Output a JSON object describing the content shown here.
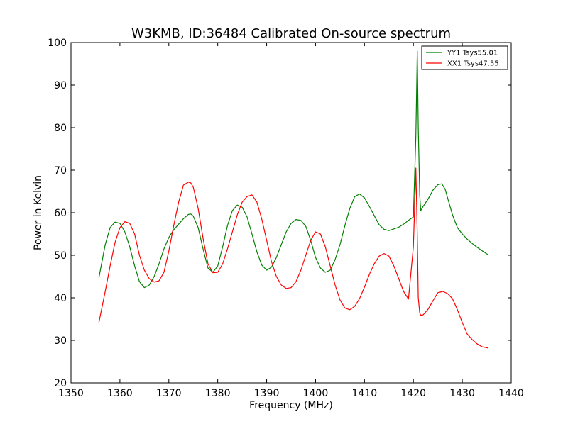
{
  "chart_data": {
    "type": "line",
    "title": "W3KMB, ID:36484 Calibrated On-source spectrum",
    "xlabel": "Frequency (MHz)",
    "ylabel": "Power in Kelvin",
    "xlim": [
      1350,
      1440
    ],
    "ylim": [
      20,
      100
    ],
    "xticks": [
      "1350",
      "1360",
      "1370",
      "1380",
      "1390",
      "1400",
      "1410",
      "1420",
      "1430",
      "1440"
    ],
    "yticks": [
      "20",
      "30",
      "40",
      "50",
      "60",
      "70",
      "80",
      "90",
      "100"
    ],
    "grid": false,
    "legend_position": "top-right",
    "series": [
      {
        "name": "YY1 Tsys55.01",
        "color": "#008000",
        "x": [
          1355.7,
          1357,
          1358,
          1359,
          1360,
          1361,
          1362,
          1363,
          1364,
          1365,
          1366,
          1367,
          1368,
          1369,
          1370,
          1371,
          1372,
          1373,
          1374,
          1374.5,
          1375,
          1376,
          1377,
          1378,
          1379,
          1380,
          1381,
          1382,
          1383,
          1384,
          1385,
          1386,
          1387,
          1388,
          1389,
          1390,
          1391,
          1392,
          1393,
          1394,
          1395,
          1396,
          1397,
          1398,
          1399,
          1400,
          1401,
          1402,
          1403,
          1404,
          1405,
          1406,
          1407,
          1408,
          1409,
          1410,
          1411,
          1412,
          1413,
          1414,
          1415,
          1416,
          1417,
          1418,
          1419,
          1420,
          1420.5,
          1420.8,
          1421.0,
          1421.3,
          1421.5,
          1422,
          1423,
          1424,
          1425,
          1425.8,
          1426.5,
          1427,
          1428,
          1429,
          1430,
          1431,
          1432,
          1433,
          1434,
          1435.3
        ],
        "values": [
          44.7,
          52.5,
          56.5,
          57.8,
          57.5,
          55.5,
          52,
          47.5,
          43.8,
          42.4,
          43,
          45,
          48,
          51.5,
          54.2,
          56,
          57.3,
          58.6,
          59.6,
          59.7,
          59.2,
          56.5,
          51.5,
          47,
          46,
          47.5,
          52,
          57,
          60.5,
          61.8,
          61.3,
          59,
          55,
          50.8,
          47.7,
          46.5,
          47.2,
          49.5,
          52.5,
          55.5,
          57.5,
          58.4,
          58.2,
          56.8,
          53.5,
          49.5,
          47,
          46,
          46.5,
          49,
          52.5,
          57,
          61,
          63.8,
          64.4,
          63.5,
          61.5,
          59.3,
          57.2,
          56.1,
          55.8,
          56.2,
          56.6,
          57.3,
          58.2,
          59,
          78,
          98,
          80,
          64,
          60.5,
          61.5,
          63.2,
          65.3,
          66.6,
          66.8,
          65.5,
          63.5,
          59.5,
          56.5,
          55,
          53.8,
          52.8,
          51.9,
          51.1,
          50.1
        ]
      },
      {
        "name": "XX1 Tsys47.55",
        "color": "#ff0000",
        "x": [
          1355.7,
          1357,
          1358,
          1359,
          1360,
          1361,
          1362,
          1363,
          1364,
          1365,
          1366,
          1367,
          1368,
          1369,
          1370,
          1371,
          1372,
          1373,
          1374,
          1374.5,
          1375,
          1376,
          1377,
          1378,
          1379,
          1380,
          1381,
          1382,
          1383,
          1384,
          1385,
          1386,
          1387,
          1388,
          1389,
          1390,
          1391,
          1392,
          1393,
          1394,
          1395,
          1396,
          1397,
          1398,
          1399,
          1400,
          1401,
          1402,
          1403,
          1404,
          1405,
          1406,
          1407,
          1408,
          1409,
          1410,
          1411,
          1412,
          1413,
          1414,
          1415,
          1416,
          1417,
          1418,
          1419,
          1420,
          1420.5,
          1420.8,
          1421.0,
          1421.3,
          1421.5,
          1422,
          1423,
          1424,
          1425,
          1426,
          1427,
          1428,
          1429,
          1430,
          1431,
          1432,
          1433,
          1434,
          1435.3
        ],
        "values": [
          34.2,
          41.5,
          47.5,
          53,
          56.5,
          57.9,
          57.5,
          55,
          50,
          46.5,
          44.5,
          43.7,
          44,
          46,
          51,
          57,
          62.5,
          66.5,
          67.2,
          67,
          66,
          61,
          54,
          48,
          45.9,
          46,
          48,
          51.5,
          55.5,
          59.5,
          62.5,
          63.8,
          64.2,
          62.5,
          58.5,
          53.5,
          48.5,
          45,
          43,
          42.2,
          42.4,
          43.8,
          46.5,
          50,
          53.5,
          55.5,
          55,
          52,
          47.5,
          43,
          39.5,
          37.6,
          37.2,
          38,
          39.8,
          42.5,
          45.5,
          48,
          49.8,
          50.4,
          49.8,
          47.5,
          44.5,
          41.5,
          39.7,
          52,
          70.5,
          55,
          40,
          36.4,
          35.9,
          36,
          37.3,
          39.3,
          41.2,
          41.5,
          41,
          39.8,
          37.2,
          34.2,
          31.5,
          30.2,
          29.2,
          28.5,
          28.2
        ]
      }
    ]
  }
}
